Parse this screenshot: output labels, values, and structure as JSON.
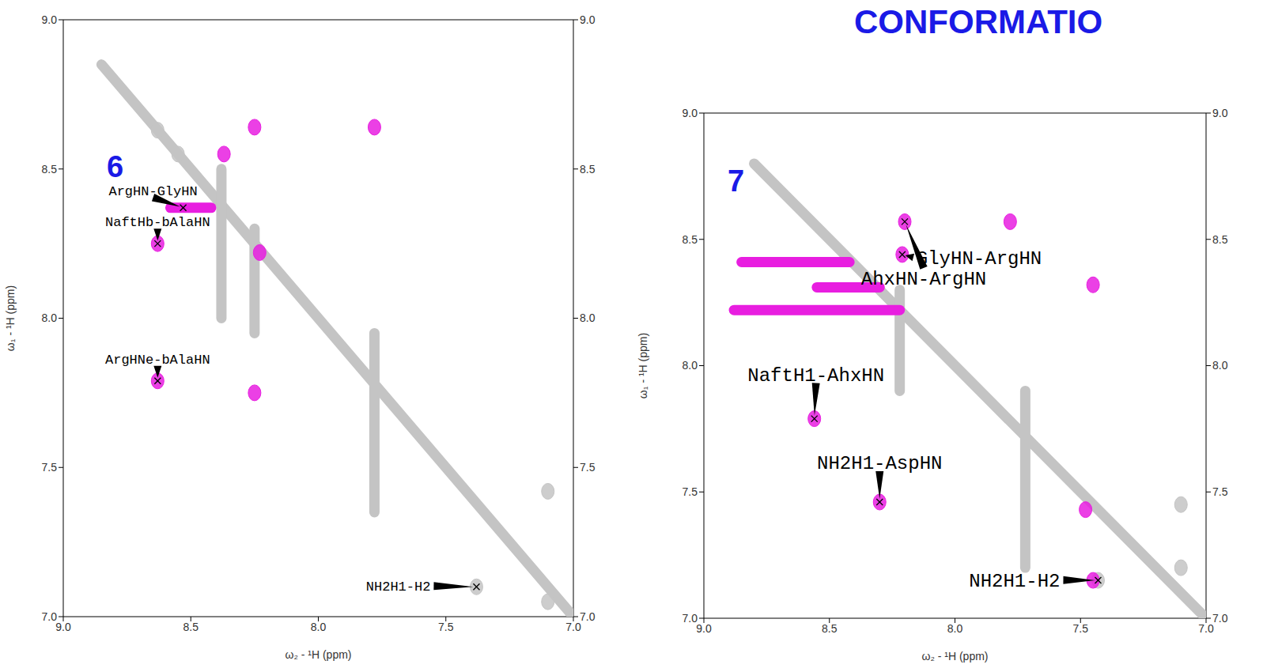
{
  "header": {
    "title": "CONFORMATIO"
  },
  "chart_data": [
    {
      "type": "scatter",
      "title": "6",
      "xlabel": "ω₂ - ¹H (ppm)",
      "ylabel": "ω₁ - ¹H (ppm)",
      "xlim": [
        9.0,
        7.0
      ],
      "ylim": [
        9.0,
        7.0
      ],
      "xticks": [
        {
          "value": 9,
          "label": "9.0"
        },
        {
          "value": 8.5,
          "label": "8.5"
        },
        {
          "value": 8,
          "label": "8.0"
        },
        {
          "value": 7.5,
          "label": "7.5"
        },
        {
          "value": 7,
          "label": "7.0"
        }
      ],
      "yticks": [
        {
          "value": 7,
          "label": "7.0"
        },
        {
          "value": 7.5,
          "label": "7.5"
        },
        {
          "value": 8,
          "label": "8.0"
        },
        {
          "value": 8.5,
          "label": "8.5"
        },
        {
          "value": 9,
          "label": "9.0"
        }
      ],
      "series": [
        {
          "type": "line",
          "color": "#c4c4c4",
          "x": [
            8.85,
            7.0
          ],
          "y": [
            8.85,
            7.0
          ]
        },
        {
          "type": "line",
          "color": "#c4c4c4",
          "x": [
            7.78,
            7.78
          ],
          "y": [
            7.35,
            7.95
          ]
        },
        {
          "type": "line",
          "color": "#c4c4c4",
          "x": [
            8.38,
            8.38
          ],
          "y": [
            8.0,
            8.5
          ]
        },
        {
          "type": "line",
          "color": "#c4c4c4",
          "x": [
            8.25,
            8.25
          ],
          "y": [
            7.95,
            8.3
          ]
        },
        {
          "type": "scatter",
          "color": "#c4c4c4",
          "marker": "ellipse",
          "x": [
            7.38,
            7.1,
            7.1,
            8.63,
            8.55
          ],
          "y": [
            7.1,
            7.42,
            7.05,
            8.63,
            8.55
          ]
        },
        {
          "type": "line",
          "color": "#e81ee0",
          "x": [
            8.58,
            8.42
          ],
          "y": [
            8.37,
            8.37
          ]
        },
        {
          "type": "scatter",
          "color": "#e81ee0",
          "marker": "ellipse",
          "x": [
            8.63,
            8.63,
            8.25,
            8.25,
            7.78,
            8.37,
            8.23
          ],
          "y": [
            7.79,
            8.25,
            7.75,
            8.64,
            8.64,
            8.55,
            8.22
          ]
        }
      ],
      "annotations": [
        {
          "text": "NH2H1-H2",
          "x": 7.38,
          "y": 7.1
        },
        {
          "text": "ArgHNe-bAlaHN",
          "x": 8.63,
          "y": 7.79
        },
        {
          "text": "NaftHb-bAlaHN",
          "x": 8.63,
          "y": 8.25
        },
        {
          "text": "ArgHN-GlyHN",
          "x": 8.53,
          "y": 8.37
        }
      ]
    },
    {
      "type": "scatter",
      "title": "7",
      "xlabel": "ω₂ - ¹H (ppm)",
      "ylabel": "ω₁ - ¹H (ppm)",
      "xlim": [
        9.0,
        7.0
      ],
      "ylim": [
        9.0,
        7.0
      ],
      "xticks": [
        {
          "value": 9,
          "label": "9.0"
        },
        {
          "value": 8.5,
          "label": "8.5"
        },
        {
          "value": 8,
          "label": "8.0"
        },
        {
          "value": 7.5,
          "label": "7.5"
        },
        {
          "value": 7,
          "label": "7.0"
        }
      ],
      "yticks": [
        {
          "value": 7,
          "label": "7.0"
        },
        {
          "value": 7.5,
          "label": "7.5"
        },
        {
          "value": 8,
          "label": "8.0"
        },
        {
          "value": 8.5,
          "label": "8.5"
        },
        {
          "value": 9,
          "label": "9.0"
        }
      ],
      "series": [
        {
          "type": "line",
          "color": "#c4c4c4",
          "x": [
            8.8,
            7.0
          ],
          "y": [
            8.8,
            7.0
          ]
        },
        {
          "type": "line",
          "color": "#c4c4c4",
          "x": [
            8.22,
            8.22
          ],
          "y": [
            7.9,
            8.3
          ]
        },
        {
          "type": "line",
          "color": "#c4c4c4",
          "x": [
            7.72,
            7.72
          ],
          "y": [
            7.2,
            7.9
          ]
        },
        {
          "type": "scatter",
          "color": "#c4c4c4",
          "marker": "ellipse",
          "x": [
            7.43,
            7.1,
            7.1
          ],
          "y": [
            7.15,
            7.45,
            7.2
          ]
        },
        {
          "type": "line",
          "color": "#e81ee0",
          "x": [
            8.88,
            8.22
          ],
          "y": [
            8.22,
            8.22
          ]
        },
        {
          "type": "line",
          "color": "#e81ee0",
          "x": [
            8.55,
            8.3
          ],
          "y": [
            8.31,
            8.31
          ]
        },
        {
          "type": "line",
          "color": "#e81ee0",
          "x": [
            8.85,
            8.42
          ],
          "y": [
            8.41,
            8.41
          ]
        },
        {
          "type": "scatter",
          "color": "#e81ee0",
          "marker": "ellipse",
          "x": [
            8.3,
            8.56,
            8.21,
            8.2,
            7.78,
            7.48,
            7.45,
            7.45
          ],
          "y": [
            7.46,
            7.79,
            8.44,
            8.57,
            8.57,
            7.43,
            8.32,
            7.15
          ]
        }
      ],
      "annotations": [
        {
          "text": "NH2H1-H2",
          "x": 7.43,
          "y": 7.15
        },
        {
          "text": "NH2H1-AspHN",
          "x": 8.3,
          "y": 7.46
        },
        {
          "text": "NaftH1-AhxHN",
          "x": 8.56,
          "y": 7.79
        },
        {
          "text": "GlyHN-ArgHN",
          "x": 8.21,
          "y": 8.44
        },
        {
          "text": "AhxHN-ArgHN",
          "x": 8.2,
          "y": 8.57
        }
      ]
    }
  ]
}
